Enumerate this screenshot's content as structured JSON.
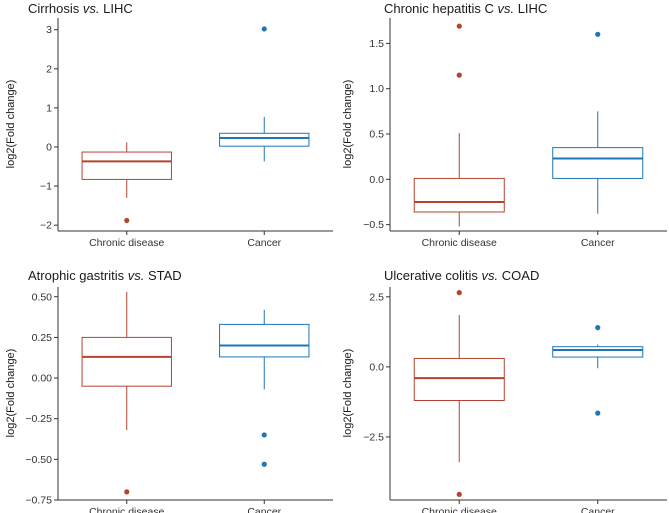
{
  "colors": {
    "chronic": "#b5442f",
    "cancer": "#1f77b4"
  },
  "chart_data": [
    {
      "type": "box",
      "title": {
        "prefix": "Cirrhosis ",
        "italic": "vs.",
        "suffix": " LIHC"
      },
      "ylabel": "log2(Fold change)",
      "categories": [
        "Chronic disease",
        "Cancer"
      ],
      "ylim": [
        -2.15,
        3.3
      ],
      "yticks": [
        -2,
        -1,
        0,
        1,
        2,
        3
      ],
      "ytick_labels": [
        "−2",
        "−1",
        "0",
        "1",
        "2",
        "3"
      ],
      "boxes": [
        {
          "q1": -0.83,
          "median": -0.37,
          "q3": -0.13,
          "whisker_low": -1.3,
          "whisker_high": 0.12,
          "outliers": [
            -1.88
          ]
        },
        {
          "q1": 0.02,
          "median": 0.23,
          "q3": 0.35,
          "whisker_low": -0.37,
          "whisker_high": 0.77,
          "outliers": [
            3.02
          ]
        }
      ]
    },
    {
      "type": "box",
      "title": {
        "prefix": "Chronic hepatitis C ",
        "italic": "vs.",
        "suffix": " LIHC"
      },
      "ylabel": "log2(Fold change)",
      "categories": [
        "Chronic disease",
        "Cancer"
      ],
      "ylim": [
        -0.57,
        1.78
      ],
      "yticks": [
        -0.5,
        0,
        0.5,
        1,
        1.5
      ],
      "ytick_labels": [
        "−0.5",
        "0.0",
        "0.5",
        "1.0",
        "1.5"
      ],
      "boxes": [
        {
          "q1": -0.36,
          "median": -0.25,
          "q3": 0.01,
          "whisker_low": -0.52,
          "whisker_high": 0.51,
          "outliers": [
            1.15,
            1.69
          ]
        },
        {
          "q1": 0.01,
          "median": 0.23,
          "q3": 0.35,
          "whisker_low": -0.38,
          "whisker_high": 0.75,
          "outliers": [
            1.6
          ]
        }
      ]
    },
    {
      "type": "box",
      "title": {
        "prefix": "Atrophic gastritis ",
        "italic": "vs.",
        "suffix": " STAD"
      },
      "ylabel": "log2(Fold change)",
      "categories": [
        "Chronic disease",
        "Cancer"
      ],
      "ylim": [
        -0.75,
        0.56
      ],
      "yticks": [
        -0.75,
        -0.5,
        -0.25,
        0,
        0.25,
        0.5
      ],
      "ytick_labels": [
        "−0.75",
        "−0.50",
        "−0.25",
        "0.00",
        "0.25",
        "0.50"
      ],
      "boxes": [
        {
          "q1": -0.05,
          "median": 0.13,
          "q3": 0.25,
          "whisker_low": -0.32,
          "whisker_high": 0.53,
          "outliers": [
            -0.7
          ]
        },
        {
          "q1": 0.13,
          "median": 0.2,
          "q3": 0.33,
          "whisker_low": -0.07,
          "whisker_high": 0.42,
          "outliers": [
            -0.35,
            -0.53
          ]
        }
      ]
    },
    {
      "type": "box",
      "title": {
        "prefix": "Ulcerative colitis ",
        "italic": "vs.",
        "suffix": " COAD"
      },
      "ylabel": "log2(Fold change)",
      "categories": [
        "Chronic disease",
        "Cancer"
      ],
      "ylim": [
        -4.75,
        2.85
      ],
      "yticks": [
        -2.5,
        0,
        2.5
      ],
      "ytick_labels": [
        "−2.5",
        "0.0",
        "2.5"
      ],
      "boxes": [
        {
          "q1": -1.2,
          "median": -0.4,
          "q3": 0.3,
          "whisker_low": -3.4,
          "whisker_high": 1.85,
          "outliers": [
            2.65,
            -4.55
          ]
        },
        {
          "q1": 0.35,
          "median": 0.6,
          "q3": 0.72,
          "whisker_low": -0.05,
          "whisker_high": 0.8,
          "outliers": [
            1.4,
            -1.65
          ]
        }
      ]
    }
  ]
}
